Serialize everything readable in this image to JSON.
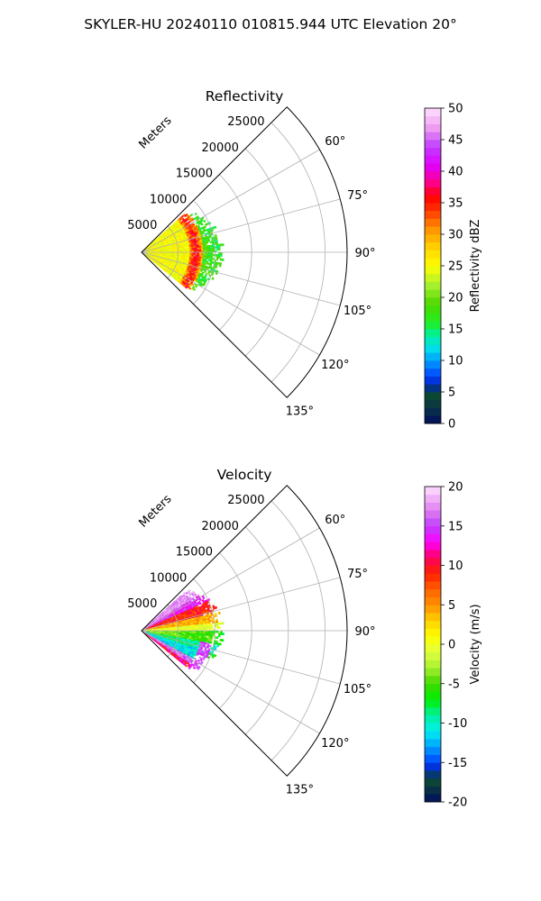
{
  "suptitle": "SKYLER-HU  20240110  010815.944 UTC Elevation 20°",
  "chart_data": [
    {
      "type": "polar-sector",
      "title": "Reflectivity",
      "range_axis_label": "Meters",
      "range_ticks": [
        "5000",
        "10000",
        "15000",
        "20000",
        "25000"
      ],
      "range_max": 28000,
      "angle_ticks": [
        "60°",
        "75°",
        "90°",
        "105°",
        "120°",
        "135°"
      ],
      "angle_range_deg": [
        45,
        135
      ],
      "colorbar": {
        "label": "Reflectivity dBZ",
        "min": 0,
        "max": 50,
        "ticks": [
          "0",
          "5",
          "10",
          "15",
          "20",
          "25",
          "30",
          "35",
          "40",
          "45",
          "50"
        ]
      },
      "data_extent_m": 11000,
      "field_description": "dBZ: band of 30-38 near 7000 m, 22-28 inside, 14-20 beyond"
    },
    {
      "type": "polar-sector",
      "title": "Velocity",
      "range_axis_label": "Meters",
      "range_ticks": [
        "5000",
        "10000",
        "15000",
        "20000",
        "25000"
      ],
      "range_max": 28000,
      "angle_ticks": [
        "60°",
        "75°",
        "90°",
        "105°",
        "120°",
        "135°"
      ],
      "angle_range_deg": [
        45,
        135
      ],
      "colorbar": {
        "label": "Velocity (m/s)",
        "min": -20,
        "max": 20,
        "ticks": [
          "-20",
          "-15",
          "-10",
          "-5",
          "0",
          "5",
          "10",
          "15",
          "20"
        ]
      },
      "data_extent_m": 11000,
      "field_description": "m/s: +15 to +20 near 55°, +5 to +10 near 70°, 0 near 85-95°, -10 to -15 near 115°, +10 near 125°"
    }
  ],
  "colormaps": {
    "reflectivity_stops": [
      [
        0,
        "#000e5c"
      ],
      [
        3,
        "#0c3a40"
      ],
      [
        5,
        "#0b4e2e"
      ],
      [
        6,
        "#0022b8"
      ],
      [
        7.5,
        "#0044ff"
      ],
      [
        10,
        "#00a0ff"
      ],
      [
        12,
        "#00e0e8"
      ],
      [
        14,
        "#00f0a0"
      ],
      [
        16,
        "#20ee20"
      ],
      [
        19,
        "#50d800"
      ],
      [
        22,
        "#a8f030"
      ],
      [
        25,
        "#ffff00"
      ],
      [
        28,
        "#ffd000"
      ],
      [
        31,
        "#ff9000"
      ],
      [
        34,
        "#ff3000"
      ],
      [
        36,
        "#ff0000"
      ],
      [
        38,
        "#ff0080"
      ],
      [
        41,
        "#e000ff"
      ],
      [
        44,
        "#c040ff"
      ],
      [
        47,
        "#f0a0f0"
      ],
      [
        50,
        "#ffe0ff"
      ]
    ],
    "velocity_stops": [
      [
        -20,
        "#000e5c"
      ],
      [
        -18,
        "#0c3a40"
      ],
      [
        -17,
        "#0b4e2e"
      ],
      [
        -16,
        "#0022b8"
      ],
      [
        -15,
        "#0044ff"
      ],
      [
        -13,
        "#00a0ff"
      ],
      [
        -11,
        "#00f0f0"
      ],
      [
        -9,
        "#00f0a0"
      ],
      [
        -7,
        "#00f000"
      ],
      [
        -5,
        "#40d800"
      ],
      [
        -3,
        "#a8f030"
      ],
      [
        -1,
        "#e0ff40"
      ],
      [
        1,
        "#ffff00"
      ],
      [
        3,
        "#ffd000"
      ],
      [
        5,
        "#ff9000"
      ],
      [
        7,
        "#ff6000"
      ],
      [
        9,
        "#ff2000"
      ],
      [
        11,
        "#ff0060"
      ],
      [
        13,
        "#ff00ff"
      ],
      [
        15,
        "#c040ff"
      ],
      [
        17,
        "#e080f0"
      ],
      [
        20,
        "#ffe0ff"
      ]
    ]
  }
}
